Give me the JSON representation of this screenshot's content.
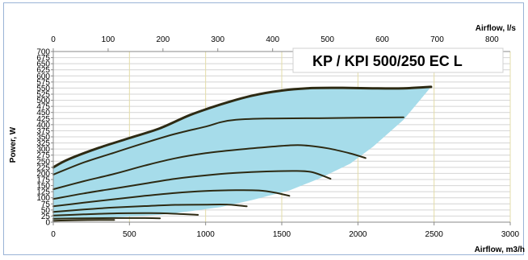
{
  "chart_data": {
    "type": "line",
    "title": "KP / KPI 500/250 EC L",
    "xlabel": "Airflow, m3/h",
    "x2label": "Airflow, l/s",
    "ylabel": "Power, W",
    "xlim": [
      0,
      3000
    ],
    "x2lim": [
      0,
      833.33
    ],
    "ylim": [
      0,
      700
    ],
    "xticks": [
      0,
      500,
      1000,
      1500,
      2000,
      2500,
      3000
    ],
    "x2ticks": [
      0,
      100,
      200,
      300,
      400,
      500,
      600,
      700,
      800
    ],
    "yticks": [
      0,
      25,
      50,
      75,
      100,
      125,
      150,
      175,
      200,
      225,
      250,
      275,
      300,
      325,
      350,
      375,
      400,
      425,
      450,
      475,
      500,
      525,
      550,
      575,
      600,
      625,
      650,
      675,
      700
    ],
    "grid": true,
    "colors": {
      "area": "#a6dcea",
      "curve": "#2d2a13",
      "grid": "#d4d4d4",
      "vgrid": "#e3dca8",
      "axis": "#8a8a8a"
    },
    "envelope": {
      "type": "area",
      "points": [
        [
          0,
          225
        ],
        [
          100,
          258
        ],
        [
          300,
          305
        ],
        [
          500,
          345
        ],
        [
          700,
          385
        ],
        [
          900,
          440
        ],
        [
          1100,
          483
        ],
        [
          1300,
          518
        ],
        [
          1500,
          540
        ],
        [
          1700,
          550
        ],
        [
          1900,
          551
        ],
        [
          2100,
          549
        ],
        [
          2300,
          549
        ],
        [
          2480,
          555
        ],
        [
          2300,
          420
        ],
        [
          2100,
          310
        ],
        [
          1950,
          240
        ],
        [
          1750,
          180
        ],
        [
          1550,
          130
        ],
        [
          1300,
          90
        ],
        [
          1100,
          62
        ],
        [
          900,
          45
        ],
        [
          700,
          30
        ],
        [
          400,
          20
        ],
        [
          100,
          13
        ],
        [
          0,
          10
        ]
      ]
    },
    "series": [
      {
        "width": 3,
        "values": [
          [
            0,
            225
          ],
          [
            100,
            258
          ],
          [
            300,
            305
          ],
          [
            500,
            345
          ],
          [
            700,
            385
          ],
          [
            900,
            440
          ],
          [
            1100,
            483
          ],
          [
            1300,
            518
          ],
          [
            1500,
            540
          ],
          [
            1700,
            550
          ],
          [
            1900,
            551
          ],
          [
            2100,
            549
          ],
          [
            2300,
            549
          ],
          [
            2480,
            555
          ]
        ]
      },
      {
        "width": 2,
        "values": [
          [
            0,
            195
          ],
          [
            200,
            245
          ],
          [
            400,
            285
          ],
          [
            600,
            325
          ],
          [
            800,
            362
          ],
          [
            1000,
            392
          ],
          [
            1100,
            410
          ],
          [
            1200,
            420
          ],
          [
            1400,
            425
          ],
          [
            1800,
            427
          ],
          [
            2300,
            430
          ]
        ]
      },
      {
        "width": 2,
        "values": [
          [
            0,
            135
          ],
          [
            200,
            168
          ],
          [
            400,
            198
          ],
          [
            600,
            232
          ],
          [
            800,
            262
          ],
          [
            1000,
            283
          ],
          [
            1200,
            297
          ],
          [
            1400,
            308
          ],
          [
            1550,
            315
          ],
          [
            1650,
            315
          ],
          [
            1800,
            303
          ],
          [
            1950,
            282
          ],
          [
            2050,
            263
          ]
        ]
      },
      {
        "width": 2,
        "values": [
          [
            0,
            95
          ],
          [
            200,
            118
          ],
          [
            400,
            138
          ],
          [
            600,
            158
          ],
          [
            800,
            178
          ],
          [
            1000,
            192
          ],
          [
            1200,
            202
          ],
          [
            1400,
            208
          ],
          [
            1600,
            210
          ],
          [
            1700,
            205
          ],
          [
            1820,
            178
          ]
        ]
      },
      {
        "width": 2,
        "values": [
          [
            0,
            65
          ],
          [
            200,
            80
          ],
          [
            400,
            94
          ],
          [
            600,
            108
          ],
          [
            800,
            120
          ],
          [
            1000,
            128
          ],
          [
            1200,
            131
          ],
          [
            1350,
            130
          ],
          [
            1450,
            122
          ],
          [
            1550,
            108
          ]
        ]
      },
      {
        "width": 2,
        "values": [
          [
            0,
            42
          ],
          [
            200,
            52
          ],
          [
            400,
            60
          ],
          [
            600,
            66
          ],
          [
            800,
            71
          ],
          [
            1000,
            72
          ],
          [
            1150,
            72
          ],
          [
            1270,
            65
          ]
        ]
      },
      {
        "width": 2,
        "values": [
          [
            0,
            27
          ],
          [
            200,
            32
          ],
          [
            400,
            36
          ],
          [
            600,
            37
          ],
          [
            750,
            36
          ],
          [
            950,
            30
          ]
        ]
      },
      {
        "width": 2,
        "values": [
          [
            0,
            14
          ],
          [
            200,
            16
          ],
          [
            400,
            17
          ],
          [
            600,
            17
          ],
          [
            700,
            16
          ]
        ]
      },
      {
        "width": 2,
        "values": [
          [
            0,
            6
          ],
          [
            150,
            8
          ],
          [
            300,
            9
          ],
          [
            400,
            9
          ]
        ]
      }
    ]
  }
}
